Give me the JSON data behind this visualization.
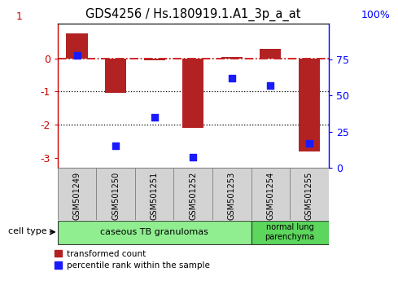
{
  "title": "GDS4256 / Hs.180919.1.A1_3p_a_at",
  "samples": [
    "GSM501249",
    "GSM501250",
    "GSM501251",
    "GSM501252",
    "GSM501253",
    "GSM501254",
    "GSM501255"
  ],
  "transformed_count": [
    0.75,
    -1.05,
    -0.05,
    -2.1,
    0.05,
    0.28,
    -2.8
  ],
  "percentile_rank": [
    78,
    15,
    35,
    7,
    62,
    57,
    17
  ],
  "cell_type_groups": [
    {
      "label": "caseous TB granulomas",
      "span": [
        0,
        4
      ],
      "color": "#90ee90"
    },
    {
      "label": "normal lung\nparenchyma",
      "span": [
        5,
        6
      ],
      "color": "#5cd65c"
    }
  ],
  "bar_color": "#b22222",
  "scatter_color": "#1a1aff",
  "ylim_left": [
    -3.3,
    1.05
  ],
  "ylim_right": [
    0,
    100
  ],
  "yticks_left": [
    0,
    -1,
    -2,
    -3
  ],
  "ytick_labels_left": [
    "0",
    "-1",
    "-2",
    "-3"
  ],
  "ytick_label_top": "1",
  "yticks_right": [
    75,
    50,
    25,
    0
  ],
  "ytick_labels_right": [
    "75",
    "50",
    "25",
    "0"
  ],
  "right_top_label": "100%",
  "background_color": "#ffffff",
  "zero_line_color": "#cc0000",
  "legend_items": [
    "transformed count",
    "percentile rank within the sample"
  ],
  "cell_type_label": "cell type"
}
